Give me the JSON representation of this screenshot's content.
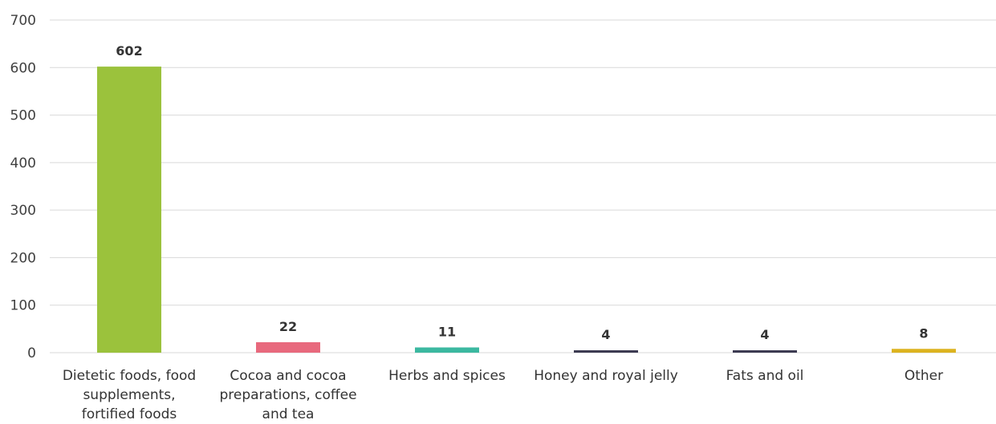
{
  "chart_data": {
    "type": "bar",
    "title": "",
    "xlabel": "",
    "ylabel": "",
    "ylim": [
      0,
      700
    ],
    "yticks": [
      0,
      100,
      200,
      300,
      400,
      500,
      600,
      700
    ],
    "grid": true,
    "legend": "none",
    "categories": [
      [
        "Dietetic foods, food",
        "supplements,",
        "fortified foods"
      ],
      [
        "Cocoa and cocoa",
        "preparations, coffee",
        "and tea"
      ],
      [
        "Herbs and spices"
      ],
      [
        "Honey and royal jelly"
      ],
      [
        "Fats and oil"
      ],
      [
        "Other"
      ]
    ],
    "values": [
      602,
      22,
      11,
      4,
      4,
      8
    ],
    "value_labels": [
      "602",
      "22",
      "11",
      "4",
      "4",
      "8"
    ],
    "colors": [
      "#9bc23c",
      "#e8697d",
      "#3bb8a0",
      "#3d3b52",
      "#3d3b52",
      "#dcb31f"
    ]
  }
}
